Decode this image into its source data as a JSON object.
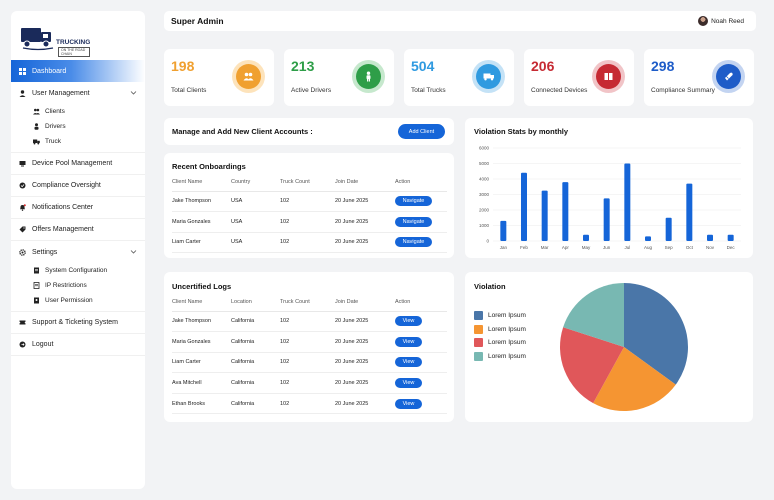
{
  "brand": {
    "name": "TRUCKING",
    "tagline": "ON THE ROAD CHAIN"
  },
  "header": {
    "title": "Super Admin",
    "user_name": "Noah Reed"
  },
  "sidebar": {
    "dashboard": "Dashboard",
    "user_management": "User Management",
    "user_sub": [
      "Clients",
      "Drivers",
      "Truck"
    ],
    "device_pool": "Device Pool Management",
    "compliance": "Compliance Oversight",
    "notifications": "Notifications Center",
    "offers": "Offers Management",
    "settings": "Settings",
    "settings_sub": [
      "System Configuration",
      "IP Restrictions",
      "User Permission"
    ],
    "support": "Support & Ticketing System",
    "logout": "Logout"
  },
  "stats": [
    {
      "value": "198",
      "label": "Total Clients",
      "color": "#f0a030",
      "ring": "#fde3bb",
      "icon": "users-icon"
    },
    {
      "value": "213",
      "label": "Active Drivers",
      "color": "#2e9e48",
      "ring": "#c6e8cd",
      "icon": "driver-icon"
    },
    {
      "value": "504",
      "label": "Total Trucks",
      "color": "#2f9ae0",
      "ring": "#c4e2f6",
      "icon": "truck-icon"
    },
    {
      "value": "206",
      "label": "Connected Devices",
      "color": "#c62a33",
      "ring": "#f1c4c7",
      "icon": "device-icon"
    },
    {
      "value": "298",
      "label": "Compliance Summary",
      "color": "#1e5cc8",
      "ring": "#c3d4f1",
      "icon": "compliance-icon"
    }
  ],
  "manage": {
    "title": "Manage and Add New Client Accounts :",
    "button": "Add Client"
  },
  "onboardings": {
    "title": "Recent Onboardings",
    "columns": [
      "Client Name",
      "Country",
      "Truck Count",
      "Join Date",
      "Action"
    ],
    "rows": [
      {
        "name": "Jake Thompson",
        "country": "USA",
        "trucks": "102",
        "date": "20 June 2025",
        "action": "Navigate"
      },
      {
        "name": "Maria Gonzales",
        "country": "USA",
        "trucks": "102",
        "date": "20 June 2025",
        "action": "Navigate"
      },
      {
        "name": "Liam Carter",
        "country": "USA",
        "trucks": "102",
        "date": "20 June 2025",
        "action": "Navigate"
      }
    ]
  },
  "logs": {
    "title": "Uncertified Logs",
    "columns": [
      "Client Name",
      "Location",
      "Truck Count",
      "Join Date",
      "Action"
    ],
    "rows": [
      {
        "name": "Jake Thompson",
        "location": "California",
        "trucks": "102",
        "date": "20 June 2025",
        "action": "View"
      },
      {
        "name": "Maria Gonzales",
        "location": "California",
        "trucks": "102",
        "date": "20 June 2025",
        "action": "View"
      },
      {
        "name": "Liam Carter",
        "location": "California",
        "trucks": "102",
        "date": "20 June 2025",
        "action": "View"
      },
      {
        "name": "Ava Mitchell",
        "location": "California",
        "trucks": "102",
        "date": "20 June 2025",
        "action": "View"
      },
      {
        "name": "Ethan Brooks",
        "location": "California",
        "trucks": "102",
        "date": "20 June 2025",
        "action": "View"
      }
    ]
  },
  "chart_data": [
    {
      "type": "bar",
      "title": "Violation Stats by monthly",
      "categories": [
        "Jan",
        "Feb",
        "Mar",
        "Apr",
        "May",
        "Jun",
        "Jul",
        "Aug",
        "Sep",
        "Oct",
        "Nov",
        "Dec"
      ],
      "values": [
        1300,
        4400,
        3250,
        3800,
        400,
        2750,
        5000,
        300,
        1500,
        3700,
        400,
        400
      ],
      "ylim": [
        0,
        6000
      ],
      "yticks": [
        0,
        1000,
        2000,
        3000,
        4000,
        5000,
        6000
      ],
      "color": "#1565d8",
      "grid": true
    },
    {
      "type": "pie",
      "title": "Violation",
      "labels": [
        "Lorem Ipsum",
        "Lorem Ipsum",
        "Lorem Ipsum",
        "Lorem Ipsum"
      ],
      "values": [
        35,
        23,
        22,
        20
      ],
      "colors": [
        "#4a76a8",
        "#f59532",
        "#e0575a",
        "#78b8b2"
      ],
      "legend": "left"
    }
  ]
}
